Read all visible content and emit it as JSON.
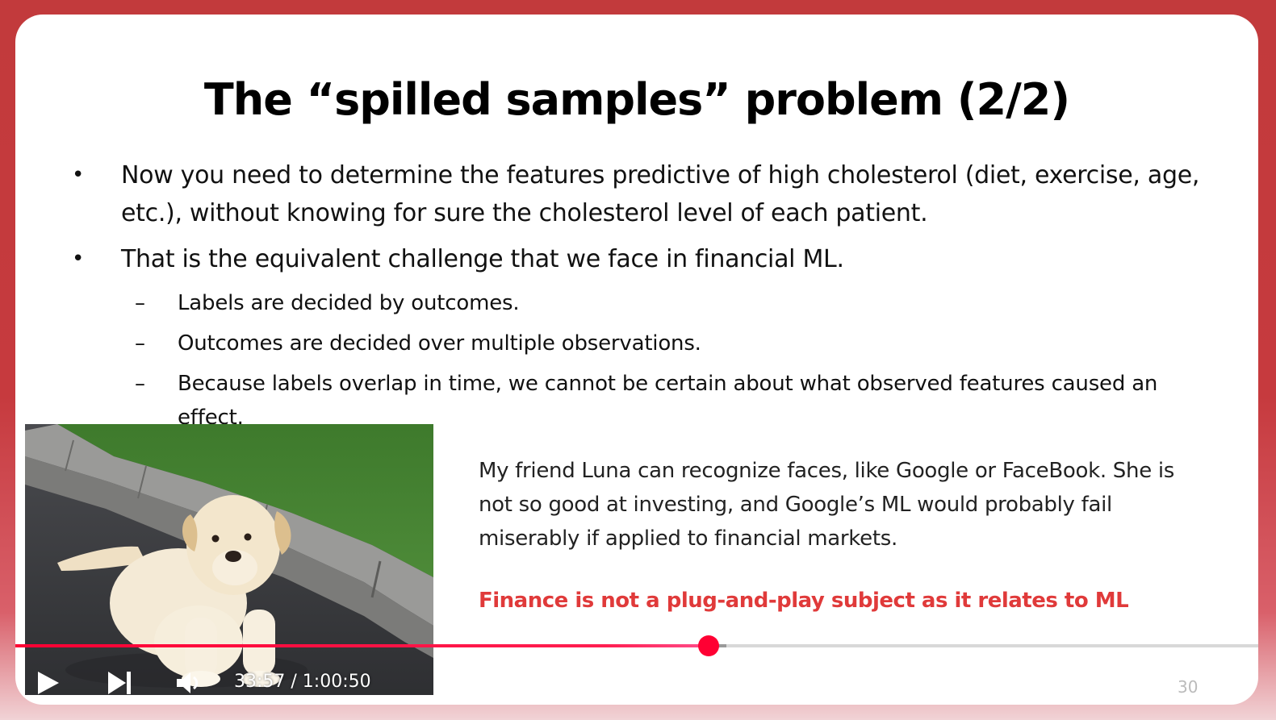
{
  "slide": {
    "title": "The “spilled samples” problem (2/2)",
    "bullets": [
      {
        "text": "Now you need to determine the features predictive of high cholesterol (diet, exercise, age, etc.), without knowing for sure the cholesterol level of each patient."
      },
      {
        "text": "That is the equivalent challenge that we face in financial ML.",
        "subitems": [
          "Labels are decided by outcomes.",
          "Outcomes are decided over multiple observations.",
          "Because labels overlap in time, we cannot be certain about what observed features caused an effect."
        ]
      }
    ],
    "side_text": "My friend Luna can recognize faces, like Google or FaceBook. She is not so good at investing, and Google’s ML would probably fail miserably if applied to financial markets.",
    "emphasis_text": "Finance is not a plug-and-play subject as it relates to ML",
    "emphasis_color": "#e03a3a",
    "slide_number": "30",
    "bullet_marker": "•",
    "dash_marker": "–"
  },
  "player": {
    "current_time": "33:57",
    "duration": "1:00:50",
    "time_display": "33:57 / 1:00:50",
    "progress_fraction": 0.558,
    "buffered_fraction": 0.572,
    "accent_color": "#ff0033",
    "controls": [
      "play-icon",
      "next-icon",
      "volume-icon"
    ]
  }
}
